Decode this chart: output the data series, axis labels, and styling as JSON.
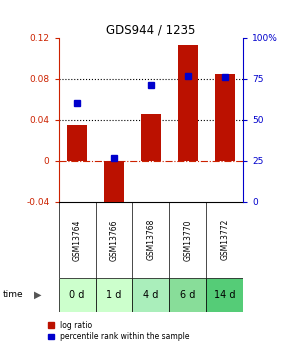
{
  "title": "GDS944 / 1235",
  "samples": [
    "GSM13764",
    "GSM13766",
    "GSM13768",
    "GSM13770",
    "GSM13772"
  ],
  "time_labels": [
    "0 d",
    "1 d",
    "4 d",
    "6 d",
    "14 d"
  ],
  "log_ratio": [
    0.035,
    -0.046,
    0.046,
    0.113,
    0.085
  ],
  "percentile_rank": [
    0.6,
    0.27,
    0.71,
    0.77,
    0.76
  ],
  "ylim_left": [
    -0.04,
    0.12
  ],
  "ylim_right": [
    0,
    1.0
  ],
  "yticks_left": [
    -0.04,
    0,
    0.04,
    0.08,
    0.12
  ],
  "ytick_labels_left": [
    "-0.04",
    "0",
    "0.04",
    "0.08",
    "0.12"
  ],
  "yticks_right": [
    0,
    0.25,
    0.5,
    0.75,
    1.0
  ],
  "ytick_labels_right": [
    "0",
    "25",
    "50",
    "75",
    "100%"
  ],
  "hline_dotted": [
    0.04,
    0.08
  ],
  "bar_color": "#bb1100",
  "dot_color": "#0000cc",
  "bar_width": 0.55,
  "time_row_colors": [
    "#ccffcc",
    "#ccffcc",
    "#aaeebb",
    "#88dd99",
    "#55cc77"
  ],
  "sample_row_color": "#cccccc",
  "legend_bar_label": "log ratio",
  "legend_dot_label": "percentile rank within the sample",
  "background_color": "#ffffff"
}
